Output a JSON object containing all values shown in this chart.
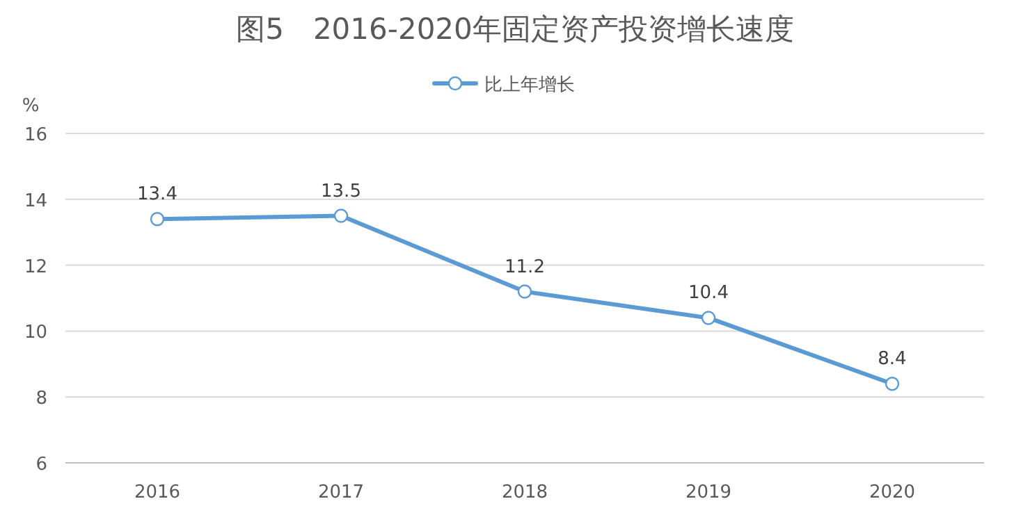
{
  "chart_data": {
    "type": "line",
    "title": "图5　2016-2020年固定资产投资增长速度",
    "ylabel": "%",
    "categories": [
      "2016",
      "2017",
      "2018",
      "2019",
      "2020"
    ],
    "series": [
      {
        "name": "比上年增长",
        "color": "#5b9bd5",
        "values": [
          13.4,
          13.5,
          11.2,
          10.4,
          8.4
        ]
      }
    ],
    "ylim": [
      6,
      16
    ],
    "yticks": [
      6,
      8,
      10,
      12,
      14,
      16
    ],
    "grid": "y",
    "legend": "top",
    "marker": "circle",
    "line_style": "solid",
    "data_labels": true
  }
}
